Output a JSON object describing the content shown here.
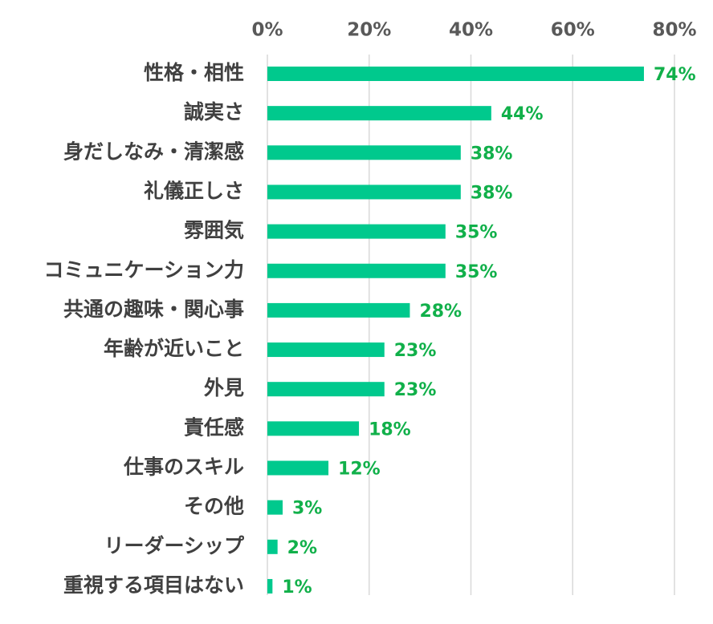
{
  "chart_data": {
    "type": "bar",
    "orientation": "horizontal",
    "title": "",
    "xlabel": "",
    "ylabel": "",
    "xlim": [
      0,
      80
    ],
    "xticks": [
      "0%",
      "20%",
      "40%",
      "60%",
      "80%"
    ],
    "xtick_values": [
      0,
      20,
      40,
      60,
      80
    ],
    "grid": true,
    "legend": "none",
    "categories": [
      "性格・相性",
      "誠実さ",
      "身だしなみ・清潔感",
      "礼儀正しさ",
      "雰囲気",
      "コミュニケーション力",
      "共通の趣味・関心事",
      "年齢が近いこと",
      "外見",
      "責任感",
      "仕事のスキル",
      "その他",
      "リーダーシップ",
      "重視する項目はない"
    ],
    "values": [
      74,
      44,
      38,
      38,
      35,
      35,
      28,
      23,
      23,
      18,
      12,
      3,
      2,
      1
    ],
    "value_labels": [
      "74%",
      "44%",
      "38%",
      "38%",
      "35%",
      "35%",
      "28%",
      "23%",
      "23%",
      "18%",
      "12%",
      "3%",
      "2%",
      "1%"
    ],
    "bar_color": "#00c98d",
    "label_color": "#11b04a"
  }
}
